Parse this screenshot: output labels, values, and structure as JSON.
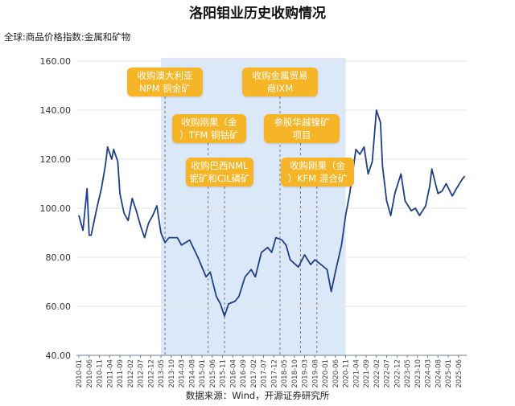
{
  "chart_data": {
    "type": "line",
    "title": "洛阳钼业历史收购情况",
    "subtitle": "全球:商品价格指数:金属和矿物",
    "source": "数据来源：Wind，开源证券研究所",
    "x_unit": "months since 2010-01",
    "xlim": [
      0,
      188
    ],
    "ylim": [
      40,
      160
    ],
    "yticks": [
      "40.00",
      "60.00",
      "80.00",
      "100.00",
      "120.00",
      "140.00",
      "160.00"
    ],
    "xticks": [
      "2010-01",
      "2010-06",
      "2010-11",
      "2011-04",
      "2011-09",
      "2012-02",
      "2012-07",
      "2012-12",
      "2013-05",
      "2013-10",
      "2014-03",
      "2014-08",
      "2015-01",
      "2015-06",
      "2015-11",
      "2016-04",
      "2016-09",
      "2017-02",
      "2017-07",
      "2017-12",
      "2018-05",
      "2018-10",
      "2019-03",
      "2019-08",
      "2020-01",
      "2020-06",
      "2020-11",
      "2021-04",
      "2021-09",
      "2022-02",
      "2022-07",
      "2022-12",
      "2023-05",
      "2023-10",
      "2024-03",
      "2024-08",
      "2025-01",
      "2025-06"
    ],
    "shaded_range": [
      "2013-05",
      "2020-11"
    ],
    "series": [
      {
        "name": "全球:商品价格指数:金属和矿物",
        "color": "#1f3f8a",
        "x": [
          0,
          2,
          4,
          5,
          6,
          9,
          11,
          13,
          14,
          16,
          17,
          19,
          20,
          22,
          24,
          26,
          28,
          30,
          32,
          34,
          36,
          38,
          40,
          42,
          44,
          48,
          50,
          54,
          58,
          62,
          64,
          67,
          69,
          71,
          73,
          76,
          78,
          81,
          84,
          86,
          89,
          92,
          94,
          96,
          99,
          101,
          103,
          107,
          110,
          113,
          115,
          118,
          121,
          123,
          125,
          128,
          130,
          132,
          135,
          137,
          139,
          141,
          143,
          145,
          147,
          148,
          150,
          152,
          154,
          157,
          159,
          162,
          164,
          166,
          169,
          171,
          172,
          175,
          177,
          179,
          182,
          184,
          187,
          188
        ],
        "y": [
          97,
          91,
          108,
          89,
          89,
          101,
          108,
          118,
          125,
          120,
          124,
          119,
          106,
          98,
          95,
          104,
          99,
          93,
          88,
          94,
          97,
          101,
          90,
          86,
          88,
          88,
          85,
          87,
          80,
          72,
          74,
          64,
          61,
          56,
          61,
          62,
          64,
          72,
          75,
          72,
          82,
          84,
          82,
          88,
          87,
          85,
          79,
          76,
          81,
          77,
          79,
          77,
          75,
          66,
          74,
          85,
          97,
          106,
          124,
          122,
          125,
          114,
          119,
          140,
          135,
          117,
          103,
          97,
          106,
          114,
          103,
          99,
          100,
          97,
          101,
          109,
          116,
          106,
          107,
          110,
          105,
          108,
          112,
          113
        ]
      }
    ],
    "annotations": [
      {
        "lines": [
          "收购澳大利亚",
          "NPM 铜金矿"
        ],
        "month": 42
      },
      {
        "lines": [
          "收购刚果（金",
          "）TFM 铜钴矿"
        ],
        "month": 63
      },
      {
        "lines": [
          "收购巴西NML",
          "铌矿和CIL磷矿"
        ],
        "month": 71
      },
      {
        "lines": [
          "收购金属贸易",
          "商IXM"
        ],
        "month": 98
      },
      {
        "lines": [
          "参股华越镍矿",
          "项目"
        ],
        "month": 108
      },
      {
        "lines": [
          "收购刚果（金",
          "）KFM 混合矿"
        ],
        "month": 116
      }
    ]
  }
}
